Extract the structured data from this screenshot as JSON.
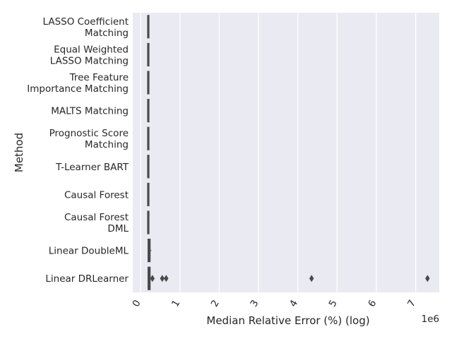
{
  "chart_data": {
    "type": "boxplot",
    "xlabel": "Median Relative Error (%) (log)",
    "ylabel": "Method",
    "x_offset_label": "1e6",
    "x_multiplier": 1000000,
    "xlim": [
      -0.2,
      7.6
    ],
    "xticks": [
      0,
      1,
      2,
      3,
      4,
      5,
      6,
      7
    ],
    "xtick_labels": [
      "0",
      "1",
      "2",
      "3",
      "4",
      "5",
      "6",
      "7"
    ],
    "xtick_rotation_deg": -60,
    "grid": true,
    "colors": {
      "plot_bg": "#eaeaf2",
      "grid": "#ffffff",
      "box": "#4a4a4a",
      "text": "#262626"
    },
    "categories": [
      {
        "lines": [
          "LASSO Coefficient",
          "Matching"
        ],
        "box": [
          0.18,
          0.18,
          0.2,
          0.21,
          0.22
        ],
        "outliers": []
      },
      {
        "lines": [
          "Equal Weighted",
          "LASSO Matching"
        ],
        "box": [
          0.18,
          0.18,
          0.2,
          0.21,
          0.22
        ],
        "outliers": []
      },
      {
        "lines": [
          "Tree Feature",
          "Importance Matching"
        ],
        "box": [
          0.18,
          0.18,
          0.2,
          0.21,
          0.21
        ],
        "outliers": []
      },
      {
        "lines": [
          "MALTS Matching"
        ],
        "box": [
          0.18,
          0.18,
          0.2,
          0.21,
          0.21
        ],
        "outliers": []
      },
      {
        "lines": [
          "Prognostic Score",
          "Matching"
        ],
        "box": [
          0.18,
          0.18,
          0.2,
          0.21,
          0.22
        ],
        "outliers": []
      },
      {
        "lines": [
          "T-Learner BART"
        ],
        "box": [
          0.18,
          0.18,
          0.2,
          0.21,
          0.21
        ],
        "outliers": []
      },
      {
        "lines": [
          "Causal Forest"
        ],
        "box": [
          0.18,
          0.18,
          0.2,
          0.21,
          0.22
        ],
        "outliers": []
      },
      {
        "lines": [
          "Causal Forest",
          "DML"
        ],
        "box": [
          0.18,
          0.18,
          0.2,
          0.21,
          0.21
        ],
        "outliers": []
      },
      {
        "lines": [
          "Linear DoubleML"
        ],
        "box": [
          0.18,
          0.19,
          0.21,
          0.24,
          0.27
        ],
        "outliers": []
      },
      {
        "lines": [
          "Linear DRLearner"
        ],
        "box": [
          0.18,
          0.19,
          0.21,
          0.24,
          0.28
        ],
        "outliers": [
          0.3,
          0.55,
          0.65,
          4.35,
          7.3
        ]
      }
    ]
  }
}
